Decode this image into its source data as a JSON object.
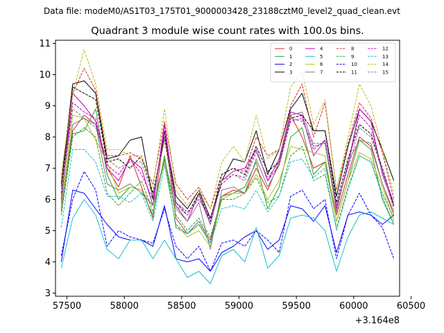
{
  "chart_data": {
    "type": "line",
    "suptitle": "Data file: modeM0/AS1T03_175T01_9000003428_23188cztM0_level2_quad_clean.evt",
    "title": "Quadrant 3 module wise count rates with 100.0s bins.",
    "xlabel": "",
    "ylabel": "",
    "x_offset_label": "+3.164e8",
    "xlim": [
      57400,
      60400
    ],
    "ylim": [
      2.9,
      11.1
    ],
    "xticks": [
      57500,
      58000,
      58500,
      59000,
      59500,
      60000,
      60500
    ],
    "xtick_labels": [
      "57500",
      "58000",
      "58500",
      "59000",
      "59500",
      "60000",
      "60500"
    ],
    "yticks": [
      3,
      4,
      5,
      6,
      7,
      8,
      9,
      10,
      11
    ],
    "ytick_labels": [
      "3",
      "4",
      "5",
      "6",
      "7",
      "8",
      "9",
      "10",
      "11"
    ],
    "grid": false,
    "legend_position": "top-right",
    "x": [
      57450,
      57550,
      57650,
      57750,
      57850,
      57950,
      58050,
      58150,
      58250,
      58350,
      58450,
      58550,
      58650,
      58750,
      58850,
      58950,
      59050,
      59150,
      59250,
      59350,
      59450,
      59550,
      59650,
      59750,
      59850,
      59950,
      60050,
      60150,
      60250,
      60350
    ],
    "series": [
      {
        "name": "0",
        "color": "#d62728",
        "dash": "solid",
        "values": [
          5.6,
          8.2,
          8.7,
          8.4,
          7.0,
          6.4,
          7.4,
          6.4,
          5.4,
          8.2,
          5.4,
          4.9,
          5.3,
          4.7,
          6.1,
          6.3,
          6.2,
          7.0,
          6.3,
          7.2,
          8.7,
          8.0,
          7.0,
          7.2,
          5.5,
          6.8,
          8.0,
          7.7,
          6.5,
          5.5
        ]
      },
      {
        "name": "1",
        "color": "#2ca02c",
        "dash": "solid",
        "values": [
          5.7,
          8.1,
          8.2,
          8.9,
          6.8,
          6.0,
          6.4,
          6.3,
          5.5,
          7.4,
          5.1,
          4.9,
          5.2,
          4.6,
          6.1,
          6.2,
          6.4,
          7.2,
          5.7,
          6.4,
          8.0,
          8.3,
          6.8,
          7.2,
          5.3,
          6.6,
          7.9,
          7.6,
          6.0,
          5.2
        ]
      },
      {
        "name": "2",
        "color": "#0000ff",
        "dash": "solid",
        "values": [
          4.0,
          6.3,
          6.2,
          5.7,
          5.2,
          4.8,
          4.7,
          4.7,
          4.5,
          5.8,
          4.1,
          4.0,
          4.1,
          3.7,
          4.3,
          4.5,
          4.8,
          5.0,
          4.4,
          4.7,
          5.8,
          5.7,
          5.3,
          5.8,
          4.3,
          5.5,
          5.6,
          5.5,
          5.2,
          5.5
        ]
      },
      {
        "name": "3",
        "color": "#000000",
        "dash": "solid",
        "values": [
          6.5,
          9.7,
          9.8,
          9.4,
          7.3,
          7.4,
          7.9,
          8.0,
          6.0,
          8.2,
          6.1,
          5.7,
          6.3,
          5.4,
          6.6,
          7.3,
          7.2,
          8.2,
          6.8,
          7.6,
          8.9,
          9.4,
          8.2,
          8.2,
          6.1,
          7.7,
          8.9,
          8.5,
          7.6,
          6.6
        ]
      },
      {
        "name": "4",
        "color": "#c000c0",
        "dash": "solid",
        "values": [
          5.9,
          9.4,
          9.0,
          8.5,
          7.0,
          6.6,
          7.3,
          7.0,
          5.8,
          8.4,
          5.8,
          5.3,
          6.2,
          5.2,
          6.6,
          6.9,
          7.0,
          7.6,
          6.6,
          7.3,
          8.8,
          8.7,
          7.4,
          7.9,
          5.7,
          7.1,
          8.9,
          8.5,
          6.8,
          5.8
        ]
      },
      {
        "name": "5",
        "color": "#17becf",
        "dash": "solid",
        "values": [
          3.8,
          5.4,
          6.0,
          5.5,
          4.4,
          4.1,
          4.7,
          4.7,
          4.1,
          4.7,
          4.1,
          3.5,
          3.7,
          3.3,
          4.2,
          4.4,
          4.0,
          5.1,
          3.8,
          4.2,
          5.4,
          5.5,
          5.4,
          5.0,
          3.7,
          4.8,
          5.5,
          5.6,
          5.4,
          5.2
        ]
      },
      {
        "name": "6",
        "color": "#bcbd22",
        "dash": "solid",
        "values": [
          5.8,
          8.7,
          8.6,
          7.9,
          7.2,
          6.2,
          6.4,
          6.3,
          5.8,
          7.2,
          5.2,
          4.8,
          5.0,
          4.5,
          6.0,
          6.2,
          6.2,
          6.8,
          6.0,
          6.6,
          7.7,
          7.6,
          7.5,
          7.4,
          5.3,
          6.6,
          7.5,
          7.3,
          6.4,
          5.3
        ]
      },
      {
        "name": "7",
        "color": "#7f7f7f",
        "dash": "solid",
        "values": [
          5.6,
          8.4,
          8.6,
          8.4,
          6.5,
          6.3,
          6.5,
          6.2,
          5.8,
          7.3,
          5.7,
          5.3,
          5.9,
          4.4,
          6.3,
          6.4,
          6.2,
          7.3,
          6.4,
          7.1,
          8.7,
          8.8,
          7.7,
          7.8,
          5.6,
          7.2,
          7.9,
          7.8,
          6.5,
          5.6
        ]
      },
      {
        "name": "8",
        "color": "#d62728",
        "dash": "dashed",
        "values": [
          6.4,
          9.4,
          10.2,
          9.5,
          7.4,
          7.4,
          7.5,
          7.3,
          6.5,
          8.5,
          6.5,
          6.0,
          6.4,
          5.7,
          6.8,
          7.0,
          6.9,
          8.0,
          7.4,
          7.6,
          9.0,
          9.7,
          8.0,
          9.1,
          6.3,
          7.8,
          9.1,
          8.6,
          7.5,
          6.0
        ]
      },
      {
        "name": "9",
        "color": "#2ca02c",
        "dash": "dashed",
        "values": [
          5.5,
          8.0,
          8.3,
          8.0,
          6.2,
          5.8,
          6.2,
          6.6,
          5.6,
          7.3,
          5.5,
          5.0,
          5.4,
          4.8,
          6.0,
          6.0,
          6.2,
          6.7,
          5.9,
          6.1,
          7.4,
          7.7,
          6.6,
          6.8,
          5.1,
          6.4,
          7.4,
          7.2,
          6.2,
          5.4
        ]
      },
      {
        "name": "10",
        "color": "#0000ff",
        "dash": "dashed",
        "values": [
          4.2,
          6.0,
          6.9,
          6.3,
          4.5,
          5.0,
          4.8,
          4.7,
          4.6,
          5.7,
          4.5,
          4.1,
          4.5,
          3.7,
          4.6,
          4.7,
          4.5,
          5.0,
          4.7,
          4.3,
          6.1,
          6.3,
          5.7,
          6.0,
          4.1,
          5.5,
          6.2,
          5.5,
          5.1,
          4.1
        ]
      },
      {
        "name": "11",
        "color": "#000000",
        "dash": "dashed",
        "values": [
          6.2,
          9.6,
          9.4,
          9.2,
          7.2,
          7.3,
          7.0,
          7.4,
          6.2,
          8.0,
          5.9,
          5.5,
          6.2,
          5.3,
          6.8,
          7.0,
          6.8,
          7.7,
          6.9,
          7.2,
          8.6,
          8.7,
          8.2,
          8.2,
          5.9,
          7.3,
          8.4,
          8.1,
          7.0,
          5.8
        ]
      },
      {
        "name": "12",
        "color": "#c000c0",
        "dash": "dashed",
        "values": [
          6.0,
          9.1,
          8.8,
          8.6,
          7.1,
          6.8,
          7.3,
          6.8,
          6.0,
          8.2,
          5.9,
          5.6,
          6.0,
          5.4,
          6.5,
          6.8,
          6.7,
          7.6,
          6.6,
          7.1,
          8.5,
          8.6,
          7.6,
          7.9,
          5.8,
          7.1,
          8.7,
          8.3,
          6.9,
          5.9
        ]
      },
      {
        "name": "13",
        "color": "#17becf",
        "dash": "dashed",
        "values": [
          5.1,
          7.6,
          7.6,
          7.2,
          6.1,
          6.1,
          5.9,
          6.2,
          5.3,
          7.1,
          5.2,
          4.9,
          5.3,
          4.6,
          5.7,
          5.8,
          5.7,
          6.3,
          5.6,
          6.1,
          7.2,
          7.3,
          6.7,
          7.0,
          5.0,
          6.3,
          7.4,
          7.2,
          6.1,
          5.2
        ]
      },
      {
        "name": "14",
        "color": "#bcbd22",
        "dash": "dashed",
        "values": [
          6.8,
          9.4,
          10.8,
          9.7,
          7.6,
          7.6,
          7.4,
          7.4,
          6.4,
          8.9,
          6.3,
          5.8,
          6.3,
          5.7,
          7.2,
          7.7,
          7.2,
          8.7,
          7.3,
          7.6,
          9.6,
          10.1,
          8.4,
          9.2,
          6.3,
          8.0,
          9.7,
          9.0,
          7.6,
          6.2
        ]
      },
      {
        "name": "15",
        "color": "#7f7f7f",
        "dash": "dashed",
        "values": [
          6.1,
          8.9,
          8.6,
          8.3,
          7.3,
          7.0,
          7.2,
          7.2,
          6.1,
          7.9,
          5.8,
          5.5,
          6.1,
          5.2,
          6.6,
          6.8,
          6.6,
          7.5,
          6.7,
          7.2,
          8.6,
          8.5,
          7.8,
          7.8,
          5.8,
          7.0,
          8.3,
          8.0,
          6.9,
          5.7
        ]
      }
    ]
  }
}
